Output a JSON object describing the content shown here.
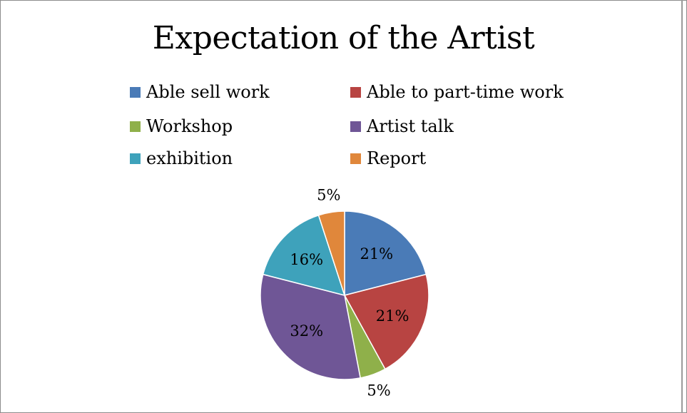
{
  "chart_data": {
    "type": "pie",
    "title": "Expectation of the Artist",
    "legend_position": "top",
    "slices": [
      {
        "name": "Able sell work",
        "value": 21,
        "label": "21%",
        "color": "#4a7bb7"
      },
      {
        "name": "Able to part-time work",
        "value": 21,
        "label": "21%",
        "color": "#b84442"
      },
      {
        "name": "Workshop",
        "value": 5,
        "label": "5%",
        "color": "#8fb04a"
      },
      {
        "name": "Artist talk",
        "value": 32,
        "label": "32%",
        "color": "#6f5696"
      },
      {
        "name": "exhibition",
        "value": 16,
        "label": "16%",
        "color": "#3ea2bb"
      },
      {
        "name": "Report",
        "value": 5,
        "label": "5%",
        "color": "#e0873b"
      }
    ]
  }
}
